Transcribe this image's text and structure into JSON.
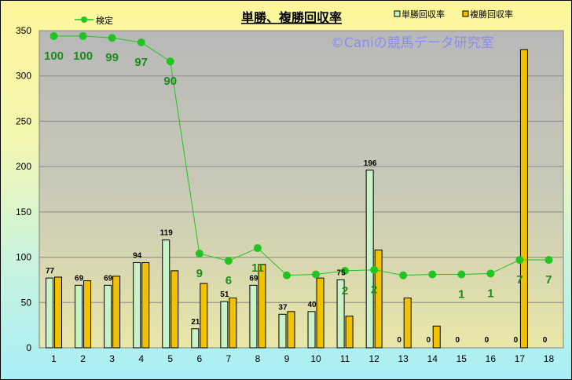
{
  "chart_data": {
    "type": "bar",
    "title": "単勝、複勝回収率",
    "watermark": "©Caniの競馬データ研究室",
    "categories": [
      "1",
      "2",
      "3",
      "4",
      "5",
      "6",
      "7",
      "8",
      "9",
      "10",
      "11",
      "12",
      "13",
      "14",
      "15",
      "16",
      "17",
      "18"
    ],
    "series": [
      {
        "name": "単勝回収率",
        "kind": "bar",
        "color": "#c9f2c9",
        "values": [
          77,
          69,
          69,
          94,
          119,
          21,
          51,
          69,
          37,
          40,
          75,
          196,
          0,
          0,
          0,
          0,
          0,
          0
        ],
        "labels": [
          "77",
          "69",
          "69",
          "94",
          "119",
          "21",
          "51",
          "69",
          "37",
          "40",
          "75",
          "196",
          "0",
          "0",
          "0",
          "0",
          "0",
          "0"
        ]
      },
      {
        "name": "複勝回収率",
        "kind": "bar",
        "color": "#f2c200",
        "values": [
          78,
          74,
          79,
          94,
          85,
          71,
          55,
          92,
          40,
          77,
          35,
          108,
          55,
          24,
          0,
          0,
          329,
          0
        ]
      },
      {
        "name": "検定",
        "kind": "line",
        "color": "#22c422",
        "values": [
          344,
          344,
          342,
          337,
          316,
          104,
          96,
          110,
          80,
          81,
          85,
          86,
          80,
          81,
          81,
          82,
          97,
          97
        ],
        "labels": [
          "100",
          "100",
          "99",
          "97",
          "90",
          "9",
          "6",
          "11",
          "",
          "",
          "2",
          "2",
          "",
          "",
          "1",
          "1",
          "7",
          "7"
        ]
      }
    ],
    "ylim": [
      0,
      350
    ],
    "yticks": [
      "0",
      "50",
      "100",
      "150",
      "200",
      "250",
      "300",
      "350"
    ],
    "grid": true,
    "legend": "top-right"
  }
}
